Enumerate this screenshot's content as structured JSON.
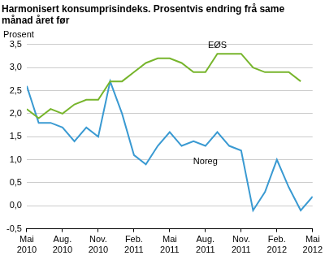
{
  "chart_data": {
    "type": "line",
    "title": "Harmonisert konsumprisindeks. Prosentvis endring frå same månad året før",
    "ylabel": "Prosent",
    "categories": [
      "Mai 2010",
      null,
      null,
      "Aug. 2010",
      null,
      null,
      "Nov. 2010",
      null,
      null,
      "Feb. 2011",
      null,
      null,
      "Mai 2011",
      null,
      null,
      "Aug. 2011",
      null,
      null,
      "Nov. 2011",
      null,
      null,
      "Feb. 2012",
      null,
      null,
      "Mai 2012"
    ],
    "series": [
      {
        "name": "EØS",
        "color": "#77b52c",
        "values": [
          2.1,
          1.9,
          2.1,
          2.0,
          2.2,
          2.3,
          2.3,
          2.7,
          2.7,
          2.9,
          3.1,
          3.2,
          3.2,
          3.1,
          2.9,
          2.9,
          3.3,
          3.3,
          3.3,
          3.0,
          2.9,
          2.9,
          2.9,
          2.7,
          null
        ]
      },
      {
        "name": "Noreg",
        "color": "#3a9ad2",
        "values": [
          2.6,
          1.8,
          1.8,
          1.7,
          1.4,
          1.7,
          1.5,
          2.7,
          2.0,
          1.1,
          0.9,
          1.3,
          1.6,
          1.3,
          1.4,
          1.3,
          1.6,
          1.3,
          1.2,
          -0.1,
          0.3,
          1.0,
          0.4,
          -0.1,
          0.2
        ]
      }
    ],
    "ylim": [
      -0.5,
      3.5
    ],
    "yticks": [
      {
        "value": -0.5,
        "label": "-0,5"
      },
      {
        "value": 0,
        "label": "0,0"
      },
      {
        "value": 0.5,
        "label": "0,5"
      },
      {
        "value": 1,
        "label": "1,0"
      },
      {
        "value": 1.5,
        "label": "1,5"
      },
      {
        "value": 2,
        "label": "2,0"
      },
      {
        "value": 2.5,
        "label": "2,5"
      },
      {
        "value": 3,
        "label": "3,0"
      },
      {
        "value": 3.5,
        "label": "3,5"
      }
    ],
    "grid": true
  }
}
